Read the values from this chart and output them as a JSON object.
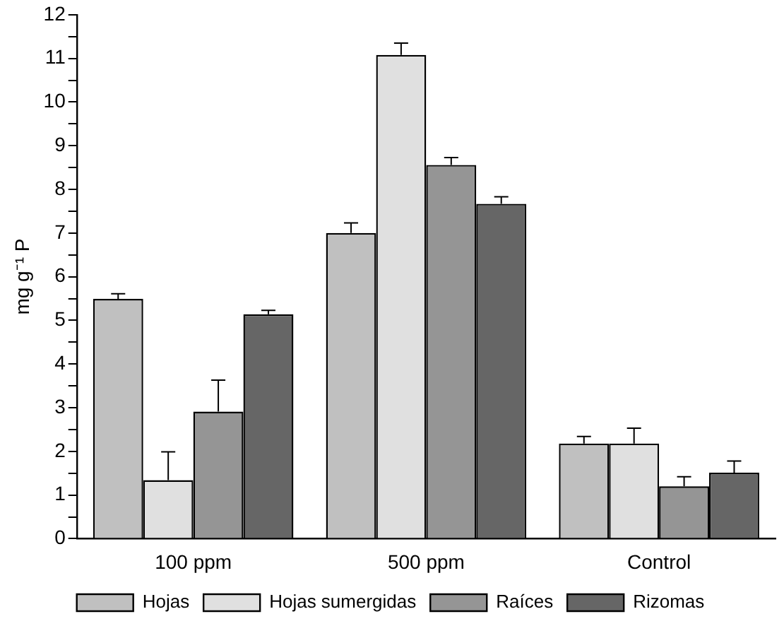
{
  "chart_data": {
    "type": "bar",
    "ylabel": "mg g⁻¹ P",
    "categories": [
      "100 ppm",
      "500 ppm",
      "Control"
    ],
    "series": [
      {
        "name": "Hojas",
        "color": "#c0c0c0",
        "values": [
          5.49,
          7.0,
          2.18
        ],
        "errors": [
          [
            5.49,
            5.61
          ],
          [
            7.0,
            7.23
          ],
          [
            2.18,
            2.34
          ]
        ]
      },
      {
        "name": "Hojas sumergidas",
        "color": "#e0e0e0",
        "values": [
          1.34,
          11.08,
          2.18
        ],
        "errors": [
          [
            1.34,
            1.99
          ],
          [
            11.08,
            11.35
          ],
          [
            2.18,
            2.53
          ]
        ]
      },
      {
        "name": "Raíces",
        "color": "#959595",
        "values": [
          2.91,
          8.56,
          1.2
        ],
        "errors": [
          [
            2.91,
            3.63
          ],
          [
            8.56,
            8.73
          ],
          [
            1.2,
            1.42
          ]
        ]
      },
      {
        "name": "Rizomas",
        "color": "#666666",
        "values": [
          5.14,
          7.67,
          1.51
        ],
        "errors": [
          [
            5.14,
            5.23
          ],
          [
            7.67,
            7.83
          ],
          [
            1.51,
            1.78
          ]
        ]
      }
    ],
    "ylim": [
      0,
      12
    ],
    "yticks": [
      0,
      {
        "value": 0.5,
        "label": null
      },
      1,
      {
        "value": 1.5,
        "label": null
      },
      2,
      {
        "value": 2.5,
        "label": null
      },
      3,
      {
        "value": 3.5,
        "label": null
      },
      4,
      {
        "value": 4.5,
        "label": null
      },
      5,
      {
        "value": 5.5,
        "label": null
      },
      6,
      {
        "value": 6.5,
        "label": null
      },
      7,
      {
        "value": 7.5,
        "label": null
      },
      8,
      {
        "value": 8.5,
        "label": null
      },
      9,
      {
        "value": 9.5,
        "label": null
      },
      10,
      {
        "value": 10.5,
        "label": null
      },
      11,
      {
        "value": 11.5,
        "label": null
      },
      12
    ],
    "grid": false,
    "legend": "bottom"
  }
}
